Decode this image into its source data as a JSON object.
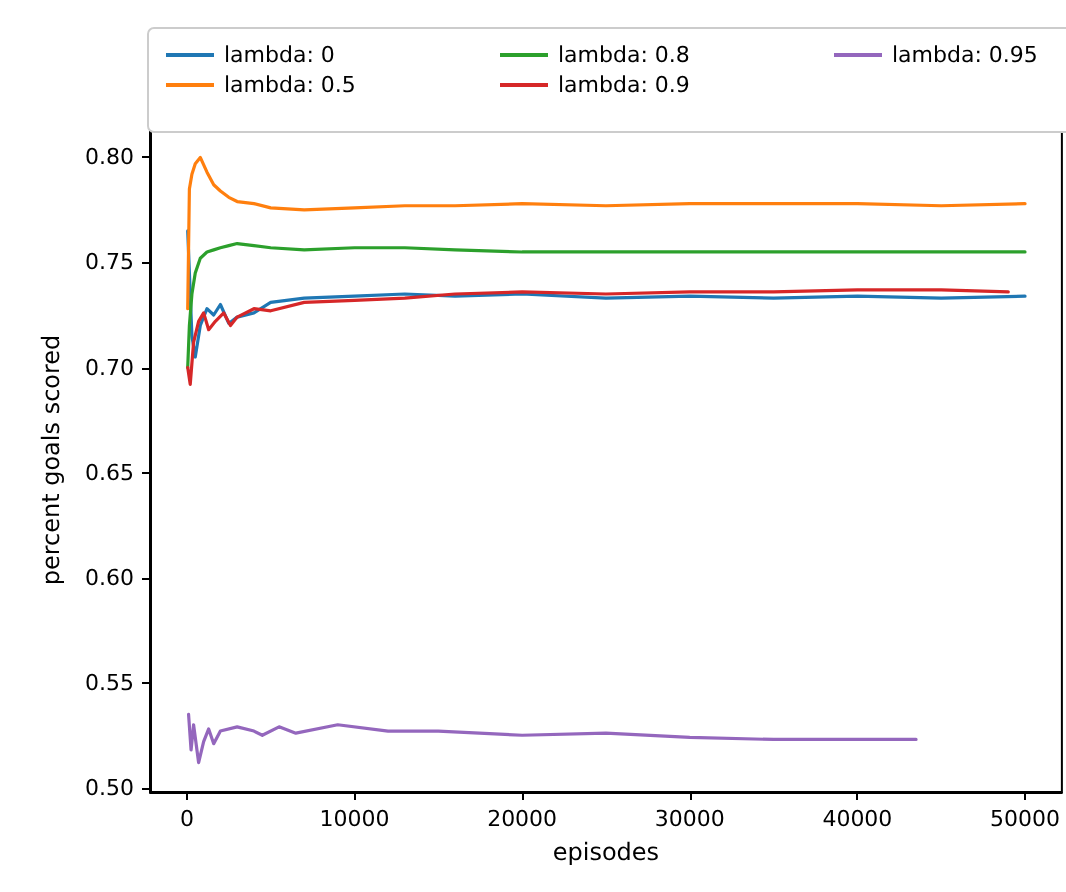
{
  "chart_data": {
    "type": "line",
    "xlabel": "episodes",
    "ylabel": "percent goals scored",
    "xlim": [
      -2200,
      52200
    ],
    "ylim": [
      0.498,
      0.814
    ],
    "xticks": [
      0,
      10000,
      20000,
      30000,
      40000,
      50000
    ],
    "yticks": [
      {
        "value": 0.5,
        "label": "0.50"
      },
      {
        "value": 0.55,
        "label": "0.55"
      },
      {
        "value": 0.6,
        "label": "0.60"
      },
      {
        "value": 0.65,
        "label": "0.65"
      },
      {
        "value": 0.7,
        "label": "0.70"
      },
      {
        "value": 0.75,
        "label": "0.75"
      },
      {
        "value": 0.8,
        "label": "0.80"
      }
    ],
    "grid": false,
    "legend": "top",
    "marker": "none",
    "line_style": "solid",
    "series": [
      {
        "name": "lambda: 0",
        "color": "#1f77b4",
        "x": [
          50,
          150,
          300,
          500,
          800,
          1200,
          1600,
          2000,
          2500,
          3000,
          4000,
          5000,
          7000,
          10000,
          13000,
          16000,
          20000,
          25000,
          30000,
          35000,
          40000,
          45000,
          50000
        ],
        "values": [
          0.765,
          0.745,
          0.715,
          0.705,
          0.72,
          0.728,
          0.725,
          0.73,
          0.721,
          0.724,
          0.726,
          0.731,
          0.733,
          0.734,
          0.735,
          0.734,
          0.735,
          0.733,
          0.734,
          0.733,
          0.734,
          0.733,
          0.734
        ]
      },
      {
        "name": "lambda: 0.5",
        "color": "#ff7f0e",
        "x": [
          50,
          150,
          300,
          500,
          800,
          1200,
          1600,
          2000,
          2500,
          3000,
          4000,
          5000,
          7000,
          10000,
          13000,
          16000,
          20000,
          25000,
          30000,
          35000,
          40000,
          45000,
          50000
        ],
        "values": [
          0.728,
          0.785,
          0.792,
          0.797,
          0.8,
          0.793,
          0.787,
          0.784,
          0.781,
          0.779,
          0.778,
          0.776,
          0.775,
          0.776,
          0.777,
          0.777,
          0.778,
          0.777,
          0.778,
          0.778,
          0.778,
          0.777,
          0.778
        ]
      },
      {
        "name": "lambda: 0.8",
        "color": "#2ca02c",
        "x": [
          50,
          150,
          300,
          500,
          800,
          1200,
          1600,
          2000,
          2500,
          3000,
          4000,
          5000,
          7000,
          10000,
          13000,
          16000,
          20000,
          25000,
          30000,
          35000,
          40000,
          45000,
          50000
        ],
        "values": [
          0.7,
          0.72,
          0.735,
          0.745,
          0.752,
          0.755,
          0.756,
          0.757,
          0.758,
          0.759,
          0.758,
          0.757,
          0.756,
          0.757,
          0.757,
          0.756,
          0.755,
          0.755,
          0.755,
          0.755,
          0.755,
          0.755,
          0.755
        ]
      },
      {
        "name": "lambda: 0.9",
        "color": "#d62728",
        "x": [
          50,
          200,
          400,
          700,
          1000,
          1300,
          1700,
          2200,
          2600,
          3000,
          4000,
          5000,
          7000,
          10000,
          13000,
          16000,
          20000,
          25000,
          30000,
          35000,
          40000,
          45000,
          49000
        ],
        "values": [
          0.7,
          0.692,
          0.712,
          0.722,
          0.726,
          0.718,
          0.722,
          0.726,
          0.72,
          0.724,
          0.728,
          0.727,
          0.731,
          0.732,
          0.733,
          0.735,
          0.736,
          0.735,
          0.736,
          0.736,
          0.737,
          0.737,
          0.736
        ]
      },
      {
        "name": "lambda: 0.95",
        "color": "#9467bd",
        "x": [
          100,
          250,
          400,
          700,
          1000,
          1300,
          1600,
          2000,
          3000,
          4000,
          4500,
          5500,
          6500,
          9000,
          12000,
          15000,
          20000,
          25000,
          30000,
          35000,
          40000,
          43500
        ],
        "values": [
          0.535,
          0.518,
          0.53,
          0.512,
          0.522,
          0.528,
          0.521,
          0.527,
          0.529,
          0.527,
          0.525,
          0.529,
          0.526,
          0.53,
          0.527,
          0.527,
          0.525,
          0.526,
          0.524,
          0.523,
          0.523,
          0.523
        ]
      }
    ]
  }
}
